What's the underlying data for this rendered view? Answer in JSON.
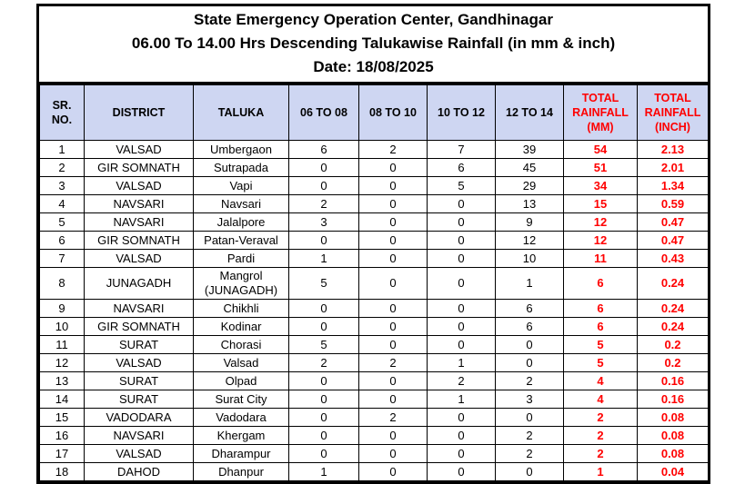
{
  "title": {
    "line1": "State Emergency Operation Center, Gandhinagar",
    "line2": "06.00 To 14.00 Hrs Descending Talukawise Rainfall (in mm & inch)",
    "line3": "Date: 18/08/2025"
  },
  "colors": {
    "header_background": "#ced6f2",
    "accent_red": "#ff0000",
    "border_black": "#000000",
    "page_background": "#ffffff"
  },
  "table": {
    "headers": [
      {
        "text": "SR.\nNO.",
        "red": false
      },
      {
        "text": "DISTRICT",
        "red": false
      },
      {
        "text": "TALUKA",
        "red": false
      },
      {
        "text": "06 TO 08",
        "red": false
      },
      {
        "text": "08 TO 10",
        "red": false
      },
      {
        "text": "10 TO 12",
        "red": false
      },
      {
        "text": "12 TO 14",
        "red": false
      },
      {
        "text": "TOTAL\nRAINFALL\n(MM)",
        "red": true
      },
      {
        "text": "TOTAL\nRAINFALL\n(INCH)",
        "red": true
      }
    ],
    "rows": [
      [
        "1",
        "VALSAD",
        "Umbergaon",
        "6",
        "2",
        "7",
        "39",
        "54",
        "2.13"
      ],
      [
        "2",
        "GIR SOMNATH",
        "Sutrapada",
        "0",
        "0",
        "6",
        "45",
        "51",
        "2.01"
      ],
      [
        "3",
        "VALSAD",
        "Vapi",
        "0",
        "0",
        "5",
        "29",
        "34",
        "1.34"
      ],
      [
        "4",
        "NAVSARI",
        "Navsari",
        "2",
        "0",
        "0",
        "13",
        "15",
        "0.59"
      ],
      [
        "5",
        "NAVSARI",
        "Jalalpore",
        "3",
        "0",
        "0",
        "9",
        "12",
        "0.47"
      ],
      [
        "6",
        "GIR SOMNATH",
        "Patan-Veraval",
        "0",
        "0",
        "0",
        "12",
        "12",
        "0.47"
      ],
      [
        "7",
        "VALSAD",
        "Pardi",
        "1",
        "0",
        "0",
        "10",
        "11",
        "0.43"
      ],
      [
        "8",
        "JUNAGADH",
        "Mangrol\n(JUNAGADH)",
        "5",
        "0",
        "0",
        "1",
        "6",
        "0.24"
      ],
      [
        "9",
        "NAVSARI",
        "Chikhli",
        "0",
        "0",
        "0",
        "6",
        "6",
        "0.24"
      ],
      [
        "10",
        "GIR SOMNATH",
        "Kodinar",
        "0",
        "0",
        "0",
        "6",
        "6",
        "0.24"
      ],
      [
        "11",
        "SURAT",
        "Chorasi",
        "5",
        "0",
        "0",
        "0",
        "5",
        "0.2"
      ],
      [
        "12",
        "VALSAD",
        "Valsad",
        "2",
        "2",
        "1",
        "0",
        "5",
        "0.2"
      ],
      [
        "13",
        "SURAT",
        "Olpad",
        "0",
        "0",
        "2",
        "2",
        "4",
        "0.16"
      ],
      [
        "14",
        "SURAT",
        "Surat City",
        "0",
        "0",
        "1",
        "3",
        "4",
        "0.16"
      ],
      [
        "15",
        "VADODARA",
        "Vadodara",
        "0",
        "2",
        "0",
        "0",
        "2",
        "0.08"
      ],
      [
        "16",
        "NAVSARI",
        "Khergam",
        "0",
        "0",
        "0",
        "2",
        "2",
        "0.08"
      ],
      [
        "17",
        "VALSAD",
        "Dharampur",
        "0",
        "0",
        "0",
        "2",
        "2",
        "0.08"
      ],
      [
        "18",
        "DAHOD",
        "Dhanpur",
        "1",
        "0",
        "0",
        "0",
        "1",
        "0.04"
      ]
    ]
  }
}
